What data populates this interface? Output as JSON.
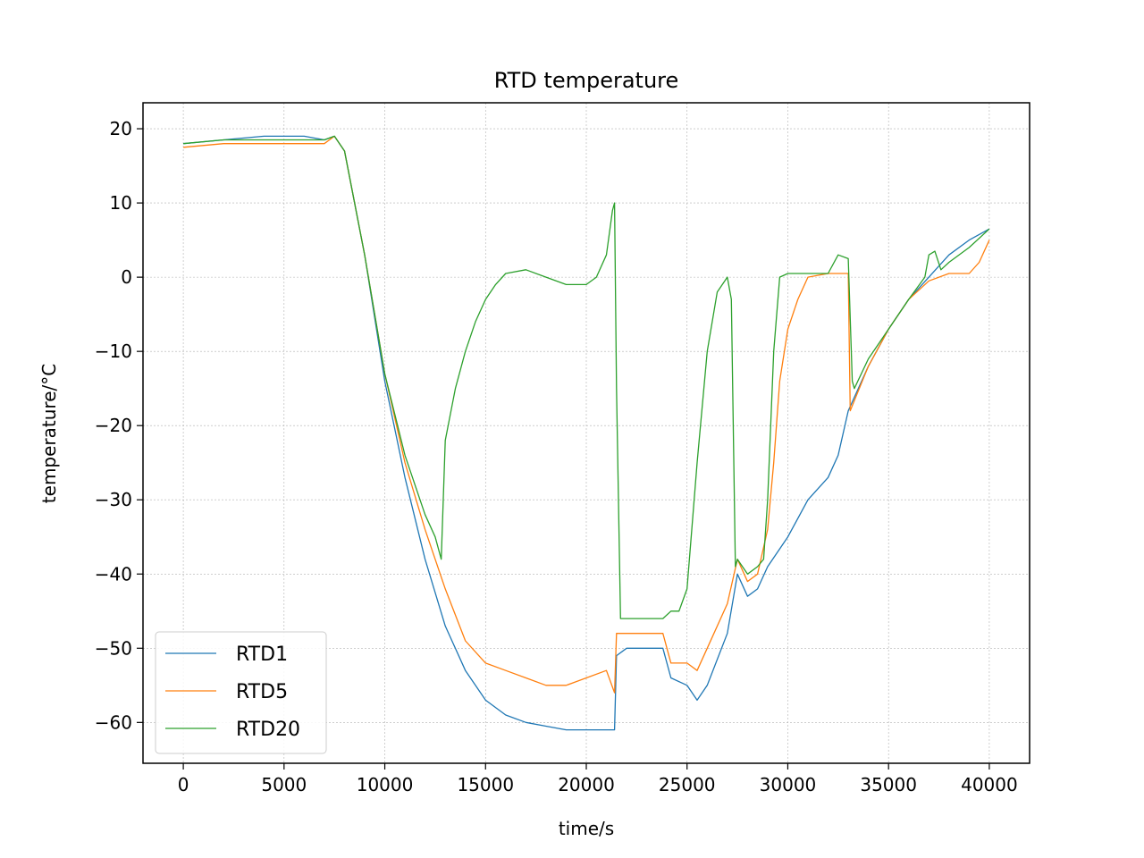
{
  "chart_data": {
    "type": "line",
    "title": "RTD temperature",
    "xlabel": "time/s",
    "ylabel": "temperature/°C",
    "xlim": [
      -2000,
      42000
    ],
    "ylim": [
      -65.5,
      23.5
    ],
    "xticks": [
      0,
      5000,
      10000,
      15000,
      20000,
      25000,
      30000,
      35000,
      40000
    ],
    "xtick_labels": [
      "0",
      "5000",
      "10000",
      "15000",
      "20000",
      "25000",
      "30000",
      "35000",
      "40000"
    ],
    "yticks": [
      20,
      10,
      0,
      -10,
      -20,
      -30,
      -40,
      -50,
      -60
    ],
    "ytick_labels": [
      "20",
      "10",
      "0",
      "−10",
      "−20",
      "−30",
      "−40",
      "−50",
      "−60"
    ],
    "grid": true,
    "legend_position": "lower-left",
    "series": [
      {
        "name": "RTD1",
        "color": "#1f77b4",
        "x": [
          0,
          2000,
          4000,
          6000,
          7000,
          7500,
          8000,
          9000,
          10000,
          11000,
          12000,
          13000,
          14000,
          15000,
          16000,
          17000,
          18000,
          19000,
          20000,
          21000,
          21400,
          21500,
          22000,
          23000,
          23800,
          24200,
          25000,
          25500,
          26000,
          27000,
          27500,
          28000,
          28500,
          29000,
          30000,
          31000,
          32000,
          32500,
          33000,
          34000,
          35000,
          36000,
          37000,
          38000,
          39000,
          40000
        ],
        "y": [
          18,
          18.5,
          19,
          19,
          18.5,
          19,
          17,
          3,
          -14,
          -27,
          -38,
          -47,
          -53,
          -57,
          -59,
          -60,
          -60.5,
          -61,
          -61,
          -61,
          -61,
          -51,
          -50,
          -50,
          -50,
          -54,
          -55,
          -57,
          -55,
          -48,
          -40,
          -43,
          -42,
          -39,
          -35,
          -30,
          -27,
          -24,
          -18,
          -12,
          -7,
          -3,
          0,
          3,
          5,
          6.5
        ]
      },
      {
        "name": "RTD5",
        "color": "#ff7f0e",
        "x": [
          0,
          2000,
          4000,
          6000,
          7000,
          7500,
          8000,
          9000,
          10000,
          11000,
          12000,
          12500,
          13000,
          14000,
          15000,
          16000,
          17000,
          18000,
          19000,
          20000,
          21000,
          21400,
          21500,
          22000,
          23000,
          23800,
          24200,
          25000,
          25500,
          26000,
          27000,
          27500,
          28000,
          28500,
          29000,
          29300,
          29600,
          30000,
          30500,
          31000,
          32000,
          33000,
          33100,
          34000,
          35000,
          36000,
          37000,
          38000,
          39000,
          39500,
          40000
        ],
        "y": [
          17.5,
          18,
          18,
          18,
          18,
          19,
          17,
          3,
          -13,
          -25,
          -34,
          -38,
          -42,
          -49,
          -52,
          -53,
          -54,
          -55,
          -55,
          -54,
          -53,
          -56,
          -48,
          -48,
          -48,
          -48,
          -52,
          -52,
          -53,
          -50,
          -44,
          -38,
          -41,
          -40,
          -34,
          -25,
          -14,
          -7,
          -3,
          0,
          0.5,
          0.5,
          -18,
          -12,
          -7,
          -3,
          -0.5,
          0.5,
          0.5,
          2,
          5
        ]
      },
      {
        "name": "RTD20",
        "color": "#2ca02c",
        "x": [
          0,
          2000,
          4000,
          6000,
          7000,
          7500,
          8000,
          9000,
          10000,
          11000,
          12000,
          12500,
          12800,
          13000,
          13500,
          14000,
          14500,
          15000,
          15500,
          16000,
          17000,
          18000,
          19000,
          20000,
          20500,
          21000,
          21300,
          21400,
          21500,
          21700,
          22000,
          23000,
          23800,
          24200,
          24600,
          25000,
          25500,
          26000,
          26500,
          27000,
          27200,
          27400,
          27500,
          28000,
          28500,
          28800,
          29000,
          29300,
          29600,
          30000,
          31000,
          32000,
          32500,
          33000,
          33200,
          33300,
          34000,
          35000,
          36000,
          36800,
          37000,
          37300,
          37600,
          38000,
          39000,
          40000
        ],
        "y": [
          18,
          18.5,
          18.5,
          18.5,
          18.5,
          19,
          17,
          3,
          -13,
          -24,
          -32,
          -35,
          -38,
          -22,
          -15,
          -10,
          -6,
          -3,
          -1,
          0.5,
          1,
          0,
          -1,
          -1,
          0,
          3,
          9,
          10,
          -15,
          -46,
          -46,
          -46,
          -46,
          -45,
          -45,
          -42,
          -25,
          -10,
          -2,
          0,
          -3,
          -39,
          -38,
          -40,
          -39,
          -38,
          -30,
          -10,
          0,
          0.5,
          0.5,
          0.5,
          3,
          2.5,
          -14,
          -15,
          -11,
          -7,
          -3,
          0,
          3,
          3.5,
          1,
          2,
          4,
          6.5
        ]
      }
    ]
  }
}
